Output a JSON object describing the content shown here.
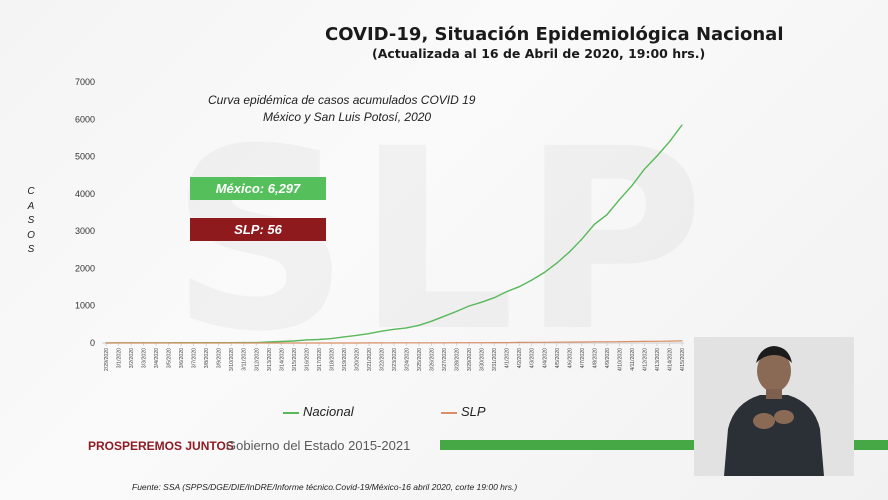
{
  "header": {
    "title": "COVID-19, Situación Epidemiológica Nacional",
    "subtitle": "(Actualizada al 16 de Abril de 2020, 19:00 hrs.)"
  },
  "watermark": "SLP",
  "chart_subtitle_line1": "Curva epidémica de casos acumulados COVID 19",
  "chart_subtitle_line2": "México y San Luis Potosí, 2020",
  "ylabel_letters": [
    "C",
    "A",
    "S",
    "O",
    "S"
  ],
  "badges": {
    "mexico": "México: 6,297",
    "slp": "SLP: 56"
  },
  "colors": {
    "nacional": "#58b85a",
    "slp": "#d99068",
    "badge_green": "#55c05b",
    "badge_red": "#8f1a1e",
    "brand_red": "#8e1b22",
    "brand_green": "#45a845"
  },
  "footer": {
    "strong": "PROSPEREMOS JUNTOS",
    "gov": "Gobierno del Estado 2015-2021",
    "source": "Fuente: SSA (SPPS/DGE/DIE/InDRE/Informe técnico.Covid-19/México-16 abril 2020, corte 19:00 hrs.)"
  },
  "chart_data": {
    "type": "line",
    "ylabel": "CASOS",
    "ylim": [
      0,
      7000
    ],
    "yticks": [
      0,
      1000,
      2000,
      3000,
      4000,
      5000,
      6000,
      7000
    ],
    "grid": false,
    "legend_position": "bottom",
    "x": [
      "2/29/2020",
      "3/1/2020",
      "3/2/2020",
      "3/3/2020",
      "3/4/2020",
      "3/5/2020",
      "3/6/2020",
      "3/7/2020",
      "3/8/2020",
      "3/9/2020",
      "3/10/2020",
      "3/11/2020",
      "3/12/2020",
      "3/13/2020",
      "3/14/2020",
      "3/15/2020",
      "3/16/2020",
      "3/17/2020",
      "3/18/2020",
      "3/19/2020",
      "3/20/2020",
      "3/21/2020",
      "3/22/2020",
      "3/23/2020",
      "3/24/2020",
      "3/25/2020",
      "3/26/2020",
      "3/27/2020",
      "3/28/2020",
      "3/29/2020",
      "3/30/2020",
      "3/31/2020",
      "4/1/2020",
      "4/2/2020",
      "4/3/2020",
      "4/4/2020",
      "4/5/2020",
      "4/6/2020",
      "4/7/2020",
      "4/8/2020",
      "4/9/2020",
      "4/10/2020",
      "4/11/2020",
      "4/12/2020",
      "4/13/2020",
      "4/14/2020",
      "4/15/2020"
    ],
    "series": [
      {
        "name": "Nacional",
        "values": [
          4,
          5,
          5,
          5,
          5,
          5,
          7,
          7,
          7,
          7,
          7,
          11,
          12,
          26,
          41,
          53,
          82,
          93,
          118,
          164,
          203,
          251,
          316,
          367,
          405,
          475,
          585,
          717,
          848,
          993,
          1094,
          1215,
          1378,
          1510,
          1688,
          1890,
          2143,
          2439,
          2785,
          3181,
          3441,
          3844,
          4219,
          4661,
          5014,
          5399,
          5847
        ]
      },
      {
        "name": "SLP",
        "values": [
          0,
          0,
          0,
          0,
          0,
          0,
          0,
          0,
          0,
          0,
          0,
          0,
          0,
          0,
          0,
          0,
          1,
          1,
          1,
          1,
          1,
          3,
          3,
          5,
          5,
          6,
          6,
          6,
          7,
          8,
          9,
          10,
          12,
          16,
          18,
          20,
          22,
          25,
          28,
          31,
          33,
          36,
          39,
          42,
          46,
          51,
          56
        ]
      }
    ]
  }
}
